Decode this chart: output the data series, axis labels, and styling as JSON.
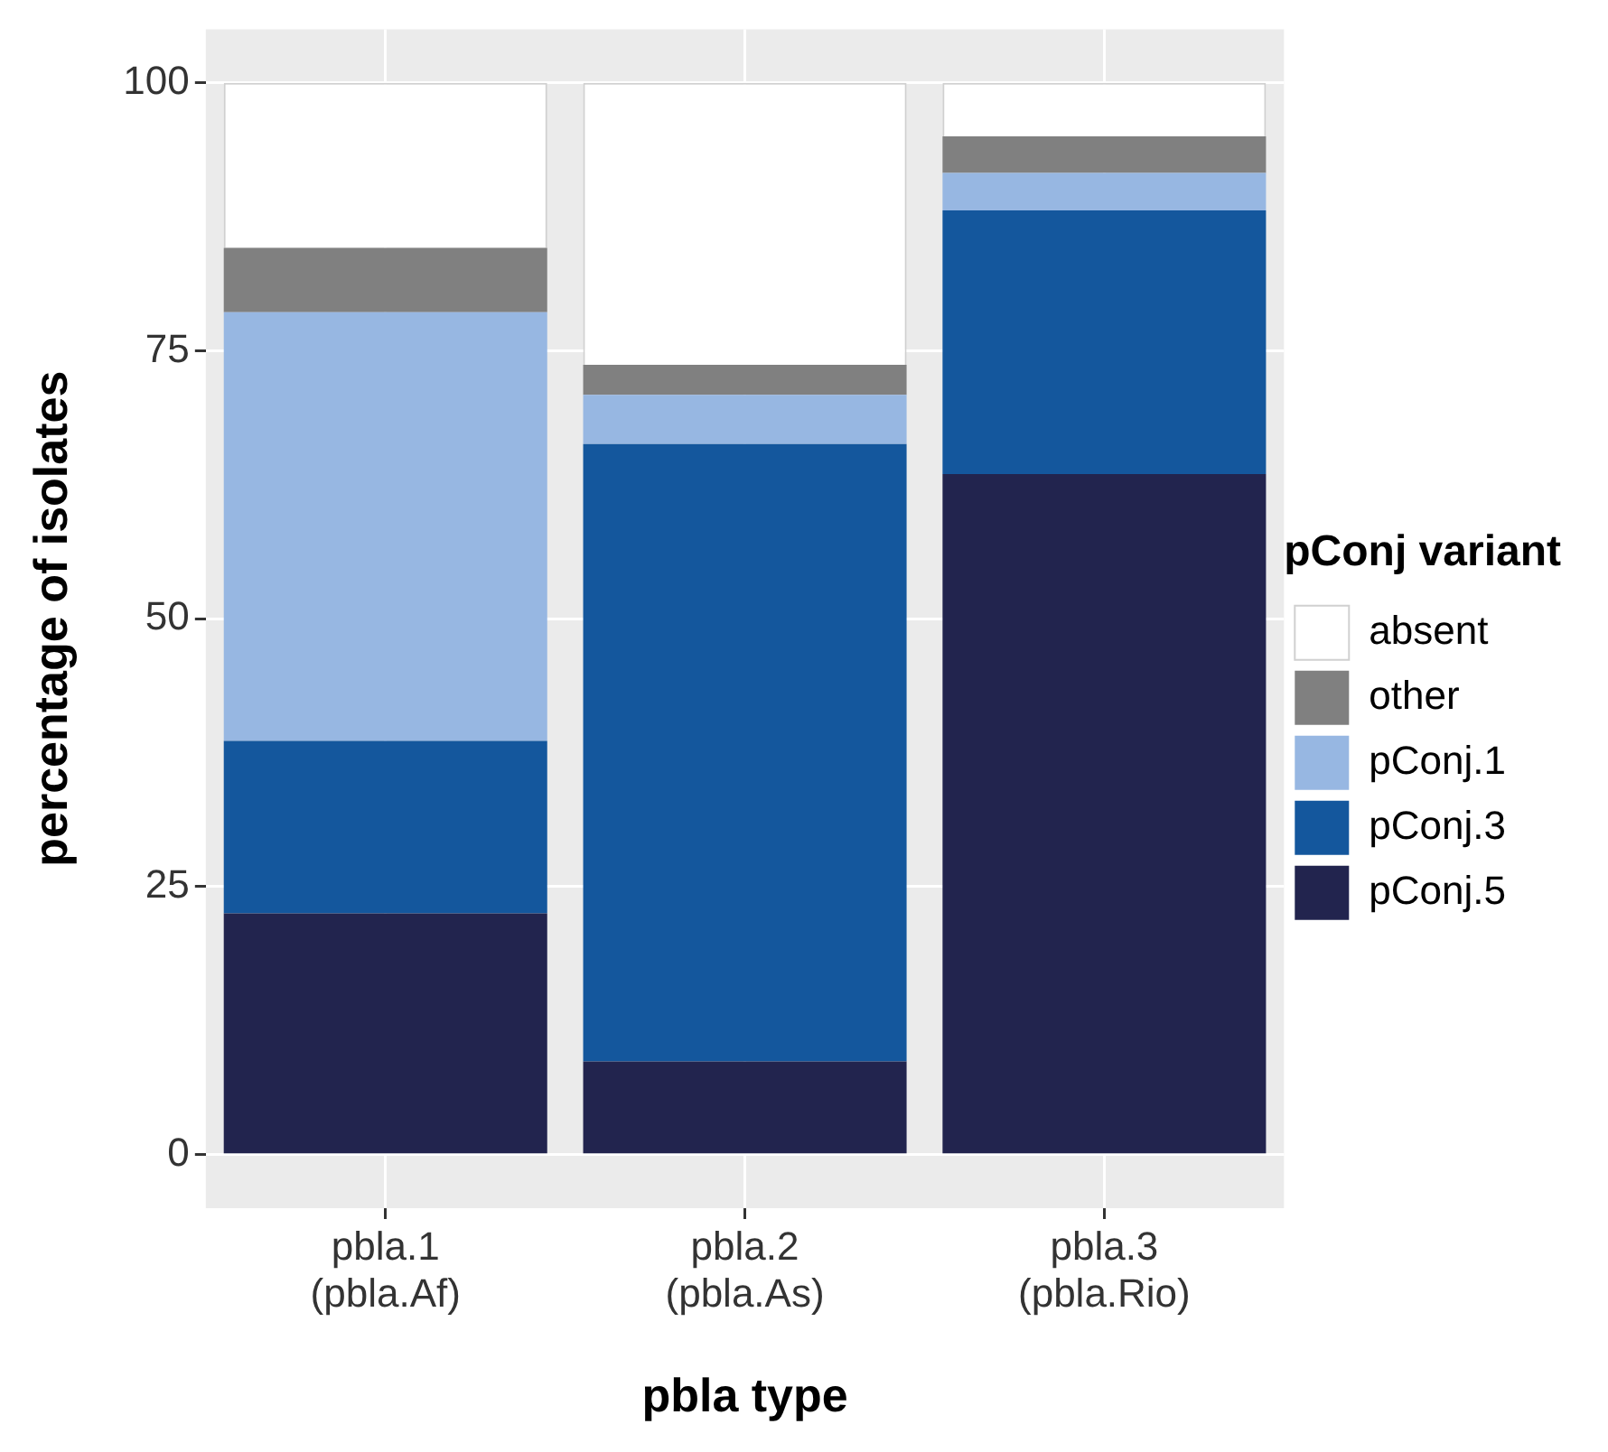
{
  "chart_data": {
    "type": "bar",
    "stacked": true,
    "xlabel": "pbla type",
    "ylabel": "percentage of isolates",
    "legend_title": "pConj variant",
    "categories": [
      "pbla.1\n(pbla.Af)",
      "pbla.2\n(pbla.As)",
      "pbla.3\n(pbla.Rio)"
    ],
    "series": [
      {
        "name": "pConj.5",
        "color": "#22244e",
        "values": [
          22.5,
          8.7,
          63.5
        ]
      },
      {
        "name": "pConj.3",
        "color": "#14579d",
        "values": [
          16.1,
          57.6,
          24.6
        ]
      },
      {
        "name": "pConj.1",
        "color": "#97b7e2",
        "values": [
          40.0,
          4.6,
          3.5
        ]
      },
      {
        "name": "other",
        "color": "#808080",
        "values": [
          6.0,
          2.8,
          3.4
        ]
      },
      {
        "name": "absent",
        "color": "#ffffff",
        "values": [
          15.4,
          26.3,
          5.0
        ]
      }
    ],
    "ylim": [
      -5,
      105
    ],
    "yticks": [
      0,
      25,
      50,
      75,
      100
    ],
    "grid": true,
    "legend": "right"
  }
}
